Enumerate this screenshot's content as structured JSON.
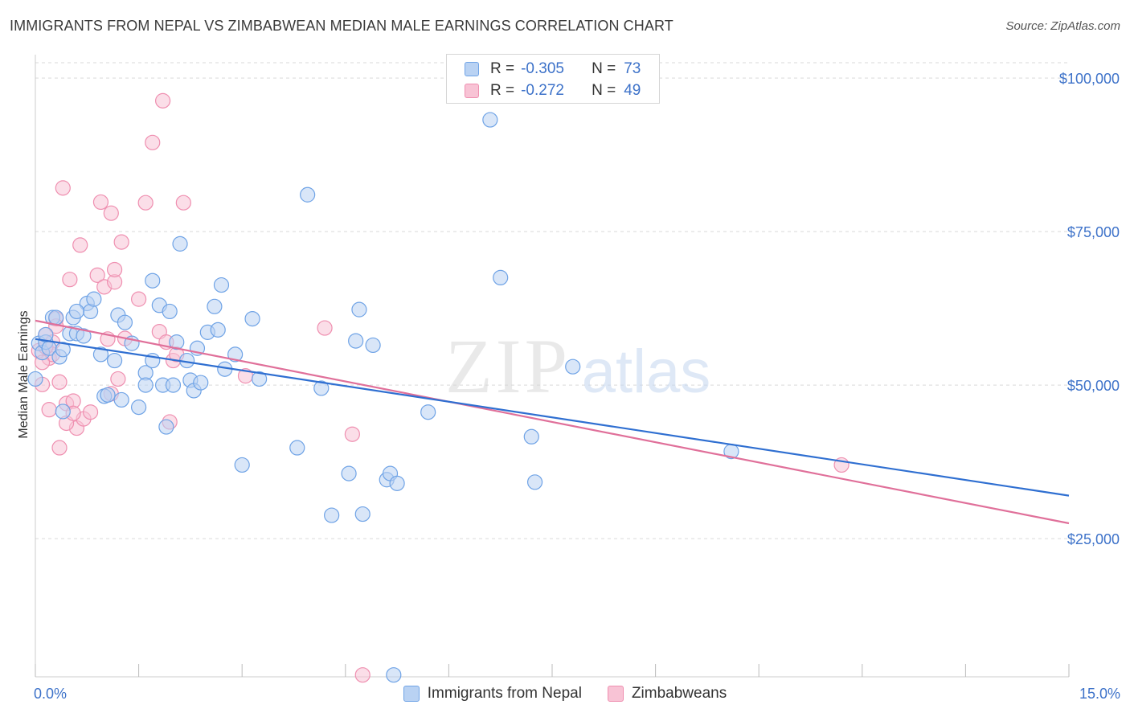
{
  "title": "IMMIGRANTS FROM NEPAL VS ZIMBABWEAN MEDIAN MALE EARNINGS CORRELATION CHART",
  "source": "Source: ZipAtlas.com",
  "watermark": {
    "zip": "ZIP",
    "atlas": "atlas"
  },
  "legend_top": {
    "rows": [
      {
        "r_label": "R =",
        "r_value": "-0.305",
        "n_label": "N =",
        "n_value": "73",
        "color": "#6fa3e6"
      },
      {
        "r_label": "R =",
        "r_value": "-0.272",
        "n_label": "N =",
        "n_value": "49",
        "color": "#ef8fb0"
      }
    ]
  },
  "legend_bottom": {
    "series_1": "Immigrants from Nepal",
    "series_2": "Zimbabweans"
  },
  "colors": {
    "blue_fill": "#b9d2f3",
    "blue_stroke": "#6fa3e6",
    "blue_line": "#2f6fd1",
    "pink_fill": "#f8c3d5",
    "pink_stroke": "#ef8fb0",
    "pink_line": "#e0709a",
    "axis_text": "#3d72c9",
    "grid": "#d9d9d9"
  },
  "chart_data": {
    "type": "scatter",
    "title": "IMMIGRANTS FROM NEPAL VS ZIMBABWEAN MEDIAN MALE EARNINGS CORRELATION CHART",
    "xlabel": "",
    "ylabel": "Median Male Earnings",
    "xlim": [
      0,
      15
    ],
    "ylim": [
      2500,
      102500
    ],
    "x_tick_labels": [
      "0.0%",
      "15.0%"
    ],
    "y_ticks": [
      25000,
      50000,
      75000,
      100000
    ],
    "y_tick_labels": [
      "$25,000",
      "$50,000",
      "$75,000",
      "$100,000"
    ],
    "grid": true,
    "legend_position": "top-center",
    "series": [
      {
        "name": "Immigrants from Nepal",
        "points": [
          [
            0.05,
            56800
          ],
          [
            0.1,
            55300
          ],
          [
            0.15,
            57000
          ],
          [
            0.2,
            56000
          ],
          [
            0.25,
            61000
          ],
          [
            0.3,
            61000
          ],
          [
            0.35,
            54600
          ],
          [
            0.4,
            55800
          ],
          [
            0.5,
            58400
          ],
          [
            0.55,
            61000
          ],
          [
            0.6,
            58400
          ],
          [
            0.7,
            58000
          ],
          [
            0.75,
            63300
          ],
          [
            0.8,
            62000
          ],
          [
            0.85,
            64000
          ],
          [
            0.95,
            55000
          ],
          [
            1.0,
            48200
          ],
          [
            1.05,
            48400
          ],
          [
            1.15,
            54000
          ],
          [
            1.2,
            61400
          ],
          [
            1.25,
            47600
          ],
          [
            1.3,
            60200
          ],
          [
            1.4,
            56800
          ],
          [
            1.5,
            46400
          ],
          [
            1.6,
            52000
          ],
          [
            1.6,
            50000
          ],
          [
            1.7,
            54000
          ],
          [
            1.7,
            67000
          ],
          [
            1.8,
            63000
          ],
          [
            1.85,
            50000
          ],
          [
            1.9,
            43200
          ],
          [
            1.95,
            62000
          ],
          [
            2.0,
            50000
          ],
          [
            2.05,
            57000
          ],
          [
            2.1,
            73000
          ],
          [
            2.2,
            54000
          ],
          [
            2.25,
            50800
          ],
          [
            2.3,
            49100
          ],
          [
            2.35,
            56000
          ],
          [
            2.4,
            50400
          ],
          [
            2.5,
            58600
          ],
          [
            2.6,
            62800
          ],
          [
            2.65,
            59000
          ],
          [
            2.7,
            66300
          ],
          [
            2.75,
            52600
          ],
          [
            2.9,
            55000
          ],
          [
            3.0,
            37000
          ],
          [
            3.15,
            60800
          ],
          [
            3.25,
            51000
          ],
          [
            3.8,
            39800
          ],
          [
            3.95,
            81000
          ],
          [
            4.15,
            49500
          ],
          [
            4.3,
            28800
          ],
          [
            4.55,
            35600
          ],
          [
            4.65,
            57200
          ],
          [
            4.7,
            62300
          ],
          [
            4.75,
            29000
          ],
          [
            4.9,
            56500
          ],
          [
            5.1,
            34600
          ],
          [
            5.15,
            35600
          ],
          [
            5.25,
            34000
          ],
          [
            5.2,
            2800
          ],
          [
            5.7,
            45600
          ],
          [
            6.6,
            93200
          ],
          [
            6.75,
            67500
          ],
          [
            7.2,
            41600
          ],
          [
            7.25,
            34200
          ],
          [
            7.8,
            53000
          ],
          [
            10.1,
            39200
          ],
          [
            0.4,
            45700
          ],
          [
            0.0,
            51000
          ],
          [
            0.15,
            58200
          ],
          [
            0.6,
            62000
          ]
        ],
        "trend": [
          [
            0,
            57500
          ],
          [
            15,
            32000
          ]
        ]
      },
      {
        "name": "Zimbabweans",
        "points": [
          [
            0.05,
            55600
          ],
          [
            0.1,
            50100
          ],
          [
            0.15,
            58200
          ],
          [
            0.2,
            54400
          ],
          [
            0.25,
            57000
          ],
          [
            0.3,
            60800
          ],
          [
            0.35,
            50500
          ],
          [
            0.35,
            39800
          ],
          [
            0.4,
            82100
          ],
          [
            0.45,
            47000
          ],
          [
            0.5,
            67200
          ],
          [
            0.55,
            47400
          ],
          [
            0.6,
            43000
          ],
          [
            0.65,
            72800
          ],
          [
            0.7,
            44500
          ],
          [
            0.8,
            45600
          ],
          [
            0.9,
            67900
          ],
          [
            0.95,
            79800
          ],
          [
            1.0,
            66000
          ],
          [
            1.05,
            57500
          ],
          [
            1.1,
            78000
          ],
          [
            1.15,
            66800
          ],
          [
            1.15,
            68800
          ],
          [
            1.2,
            51000
          ],
          [
            1.25,
            73300
          ],
          [
            1.3,
            57600
          ],
          [
            1.5,
            64000
          ],
          [
            1.6,
            79700
          ],
          [
            1.7,
            89500
          ],
          [
            1.8,
            58700
          ],
          [
            1.85,
            96300
          ],
          [
            1.9,
            57000
          ],
          [
            1.95,
            44000
          ],
          [
            2.0,
            54000
          ],
          [
            2.05,
            55000
          ],
          [
            2.15,
            79700
          ],
          [
            3.05,
            51500
          ],
          [
            4.2,
            59300
          ],
          [
            4.6,
            42000
          ],
          [
            4.75,
            2800
          ],
          [
            11.7,
            37000
          ],
          [
            0.2,
            46000
          ],
          [
            0.45,
            43800
          ],
          [
            0.25,
            55000
          ],
          [
            0.1,
            53700
          ],
          [
            0.3,
            59600
          ],
          [
            1.1,
            48600
          ],
          [
            0.55,
            45400
          ],
          [
            0.15,
            56200
          ]
        ],
        "trend": [
          [
            0,
            60500
          ],
          [
            15,
            27500
          ]
        ]
      }
    ]
  }
}
